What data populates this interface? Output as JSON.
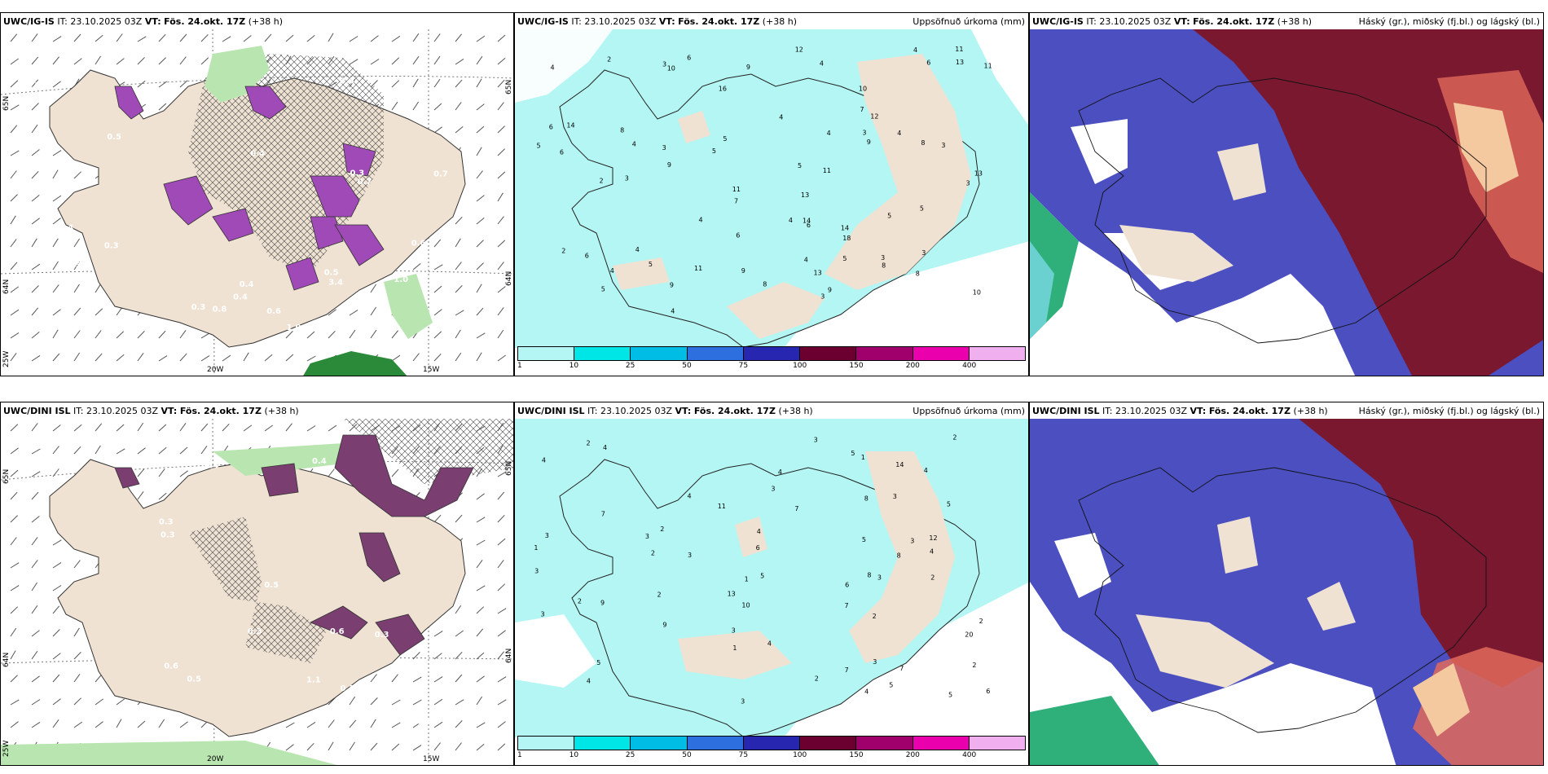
{
  "panels": [
    {
      "model": "UWC/IG-IS",
      "it": "IT: 23.10.2025 03Z",
      "vt_label": "VT:",
      "vt_value": "Fös. 24.okt. 17Z",
      "lead": "(+38 h)",
      "right_title": "",
      "lon_labels": [
        "20W",
        "15W"
      ],
      "lat_labels": [
        "65N",
        "64N",
        "25W"
      ],
      "right_lat": [
        "65N",
        "64N"
      ],
      "value_labels": [
        "0.3",
        "0.4",
        "0.4",
        "0.5",
        "0.7",
        "0.5",
        "0.4",
        "0.4",
        "0.3",
        "0.5",
        "0.3",
        "1.0",
        "0.8",
        "1.0",
        "0.6",
        "0.6",
        "0.5",
        "3.4",
        "0.6",
        "0.7"
      ]
    },
    {
      "model": "UWC/IG-IS",
      "it": "IT: 23.10.2025 03Z",
      "vt_label": "VT:",
      "vt_value": "Fös. 24.okt. 17Z",
      "lead": "(+38 h)",
      "right_title": "Uppsöfnuð úrkoma (mm)",
      "numbers": [
        "9",
        "10",
        "4",
        "8",
        "4",
        "13",
        "3",
        "9",
        "7",
        "5",
        "6",
        "6",
        "11",
        "14",
        "9",
        "4",
        "6",
        "6",
        "5",
        "8",
        "3",
        "6",
        "9",
        "8",
        "11",
        "12",
        "3",
        "4",
        "8",
        "16",
        "18",
        "11",
        "10",
        "11",
        "6",
        "9",
        "12",
        "14",
        "13",
        "14",
        "9",
        "5",
        "11",
        "3",
        "4",
        "5",
        "4",
        "6",
        "13",
        "13",
        "4",
        "4",
        "3",
        "7",
        "4",
        "10",
        "8",
        "5",
        "4",
        "2",
        "5",
        "3",
        "3",
        "2",
        "3",
        "5",
        "2",
        "4",
        "5",
        "5",
        "3",
        "4",
        "4"
      ],
      "legend_labels": [
        "1",
        "10",
        "25",
        "50",
        "75",
        "100",
        "150",
        "200",
        "400"
      ]
    },
    {
      "model": "UWC/IG-IS",
      "it": "IT: 23.10.2025 03Z",
      "vt_label": "VT:",
      "vt_value": "Fös. 24.okt. 17Z",
      "lead": "(+38 h)",
      "right_title": "Háský (gr.), miðský (fj.bl.) og lágský (bl.)"
    },
    {
      "model": "UWC/DINI ISL",
      "it": "IT: 23.10.2025 03Z",
      "vt_label": "VT:",
      "vt_value": "Fös. 24.okt. 17Z",
      "lead": "(+38 h)",
      "right_title": "",
      "lon_labels": [
        "20W",
        "15W"
      ],
      "lat_labels": [
        "65N",
        "64N",
        "25W"
      ],
      "right_lat": [
        "65N",
        "64N"
      ],
      "value_labels": [
        "0.4",
        "0.3",
        "0.5",
        "0.3",
        "0.4",
        "0.5",
        "0.3",
        "0.4",
        "0.3",
        "0.6",
        "0.4",
        "0.3",
        "0.5",
        "0.8",
        "1.1",
        "0.3",
        "0.6"
      ]
    },
    {
      "model": "UWC/DINI ISL",
      "it": "IT: 23.10.2025 03Z",
      "vt_label": "VT:",
      "vt_value": "Fös. 24.okt. 17Z",
      "lead": "(+38 h)",
      "right_title": "Uppsöfnuð úrkoma (mm)",
      "numbers": [
        "7",
        "2",
        "3",
        "20",
        "7",
        "3",
        "12",
        "4",
        "2",
        "5",
        "8",
        "6",
        "3",
        "2",
        "9",
        "5",
        "4",
        "2",
        "14",
        "11",
        "10",
        "3",
        "5",
        "5",
        "4",
        "5",
        "7",
        "8",
        "6",
        "9",
        "5",
        "3",
        "3",
        "3",
        "3",
        "4",
        "7",
        "5",
        "3",
        "4",
        "13",
        "2",
        "4",
        "3",
        "1",
        "4",
        "2",
        "2",
        "1",
        "4",
        "3",
        "3",
        "6",
        "7",
        "4",
        "2",
        "1",
        "2",
        "8",
        "4",
        "2",
        "1",
        "3",
        "2"
      ],
      "legend_labels": [
        "1",
        "10",
        "25",
        "50",
        "75",
        "100",
        "150",
        "200",
        "400"
      ]
    },
    {
      "model": "UWC/DINI ISL",
      "it": "IT: 23.10.2025 03Z",
      "vt_label": "VT:",
      "vt_value": "Fös. 24.okt. 17Z",
      "lead": "(+38 h)",
      "right_title": "Háský (gr.), miðský (fj.bl.) og lágský (bl.)"
    }
  ],
  "colors": {
    "land": "#efe2d3",
    "precip_scale": [
      "#b3f6f3",
      "#00e5e5",
      "#00bde5",
      "#2e6fe0",
      "#2626b0",
      "#6b0030",
      "#a0006b",
      "#ea00ad",
      "#f0b0f0"
    ],
    "cloud_high": "#7a1830",
    "cloud_mid": "#4b4fc0",
    "cloud_low": "#2fb07a"
  }
}
